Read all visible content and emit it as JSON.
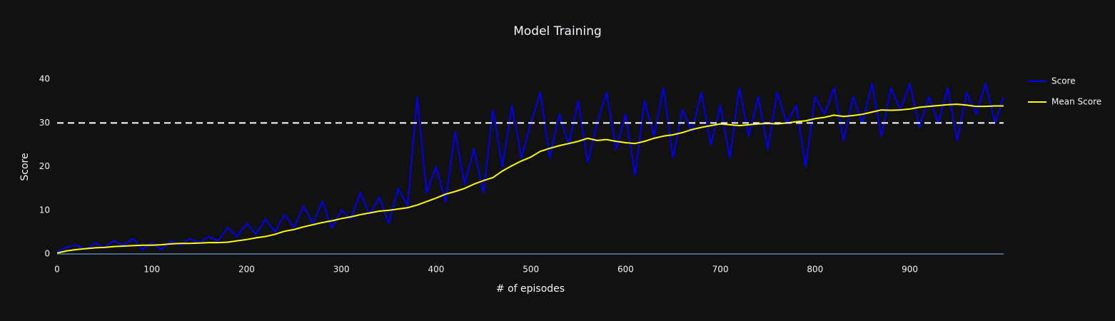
{
  "chart_data": {
    "type": "line",
    "title": "Model Training",
    "x_label": "# of episodes",
    "y_label": "Score",
    "x": [
      0,
      10,
      20,
      30,
      40,
      50,
      60,
      70,
      80,
      90,
      100,
      110,
      120,
      130,
      140,
      150,
      160,
      170,
      180,
      190,
      200,
      210,
      220,
      230,
      240,
      250,
      260,
      270,
      280,
      290,
      300,
      310,
      320,
      330,
      340,
      350,
      360,
      370,
      380,
      390,
      400,
      410,
      420,
      430,
      440,
      450,
      460,
      470,
      480,
      490,
      500,
      510,
      520,
      530,
      540,
      550,
      560,
      570,
      580,
      590,
      600,
      610,
      620,
      630,
      640,
      650,
      660,
      670,
      680,
      690,
      700,
      710,
      720,
      730,
      740,
      750,
      760,
      770,
      780,
      790,
      800,
      810,
      820,
      830,
      840,
      850,
      860,
      870,
      880,
      890,
      900,
      910,
      920,
      930,
      940,
      950,
      960,
      970,
      980,
      990,
      999
    ],
    "series": [
      {
        "name": "Score",
        "color": "#0000ff",
        "values": [
          0.5,
          1.5,
          2,
          1,
          2.5,
          1.5,
          3,
          2,
          3.5,
          1,
          2.5,
          1,
          3,
          2,
          3.5,
          2.5,
          4,
          3,
          6,
          4,
          7,
          4.5,
          8,
          5,
          9,
          6,
          11,
          7,
          12,
          6,
          10,
          8,
          14,
          9,
          13,
          7,
          15,
          11,
          36,
          14,
          20,
          12,
          28,
          16,
          24,
          14,
          33,
          20,
          34,
          22,
          30,
          37,
          22,
          32,
          25,
          35,
          21,
          30,
          37,
          24,
          32,
          18,
          35,
          27,
          38,
          22,
          33,
          28,
          37,
          25,
          34,
          22,
          38,
          27,
          36,
          24,
          37,
          30,
          34,
          20,
          36,
          32,
          38,
          26,
          36,
          30,
          39,
          27,
          38,
          33,
          39,
          29,
          36,
          30,
          38,
          26,
          37,
          32,
          39,
          30,
          36
        ]
      },
      {
        "name": "Mean Score",
        "color": "#ffff00",
        "values": [
          0.2,
          0.7,
          1,
          1.2,
          1.4,
          1.5,
          1.7,
          1.8,
          1.9,
          2,
          2,
          2.1,
          2.3,
          2.4,
          2.4,
          2.5,
          2.6,
          2.6,
          2.7,
          3,
          3.3,
          3.7,
          4,
          4.5,
          5.2,
          5.6,
          6.2,
          6.7,
          7.2,
          7.6,
          8.1,
          8.5,
          9,
          9.4,
          9.8,
          10,
          10.3,
          10.6,
          11.2,
          12,
          12.8,
          13.7,
          14.3,
          15,
          16,
          16.8,
          17.5,
          19,
          20.2,
          21.3,
          22.2,
          23.5,
          24.2,
          24.8,
          25.3,
          25.8,
          26.5,
          26,
          26.2,
          25.8,
          25.5,
          25.3,
          25.8,
          26.5,
          27,
          27.3,
          27.8,
          28.5,
          29,
          29.4,
          29.8,
          29.6,
          29.4,
          29.6,
          29.8,
          29.9,
          29.8,
          30,
          30.3,
          30.5,
          31,
          31.3,
          31.8,
          31.5,
          31.7,
          32,
          32.5,
          33,
          32.9,
          33,
          33.2,
          33.6,
          33.8,
          34,
          34.2,
          34.3,
          34.1,
          33.8,
          33.8,
          33.9,
          33.9
        ]
      }
    ],
    "reference_line": {
      "value": 30,
      "color": "#ffffff",
      "dash": true
    },
    "xlim": [
      0,
      999
    ],
    "ylim": [
      0,
      42
    ],
    "xticks": [
      0,
      100,
      200,
      300,
      400,
      500,
      600,
      700,
      800,
      900
    ],
    "yticks": [
      0,
      10,
      20,
      30,
      40
    ],
    "grid": false,
    "legend": "top-right"
  }
}
